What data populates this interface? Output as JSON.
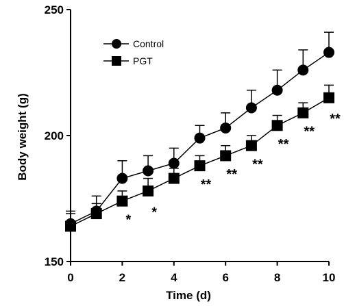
{
  "chart_data": {
    "type": "line",
    "xlabel": "Time (d)",
    "ylabel": "Body weight (g)",
    "xlim": [
      0,
      10
    ],
    "ylim": [
      150,
      250
    ],
    "xticks": [
      0,
      2,
      4,
      6,
      8,
      10
    ],
    "yticks": [
      150,
      200,
      250
    ],
    "x": [
      0,
      1,
      2,
      3,
      4,
      5,
      6,
      7,
      8,
      9,
      10
    ],
    "grid": false,
    "legend_position": "top-left",
    "series": [
      {
        "name": "Control",
        "marker": "circle",
        "values": [
          165,
          170,
          183,
          186,
          189,
          199,
          203,
          211,
          218,
          226,
          233
        ],
        "error": [
          5,
          6,
          7,
          6,
          6,
          5,
          6,
          7,
          8,
          8,
          8
        ]
      },
      {
        "name": "PGT",
        "marker": "square",
        "values": [
          164,
          169,
          174,
          178,
          183,
          188,
          192,
          196,
          204,
          209,
          215
        ],
        "error": [
          5,
          4,
          4,
          5,
          4,
          4,
          4,
          4,
          4,
          4,
          5
        ]
      }
    ],
    "significance": [
      {
        "x": 2,
        "label": "*"
      },
      {
        "x": 3,
        "label": "*"
      },
      {
        "x": 5,
        "label": "**"
      },
      {
        "x": 6,
        "label": "**"
      },
      {
        "x": 7,
        "label": "**"
      },
      {
        "x": 8,
        "label": "**"
      },
      {
        "x": 9,
        "label": "**"
      },
      {
        "x": 10,
        "label": "**"
      }
    ]
  }
}
